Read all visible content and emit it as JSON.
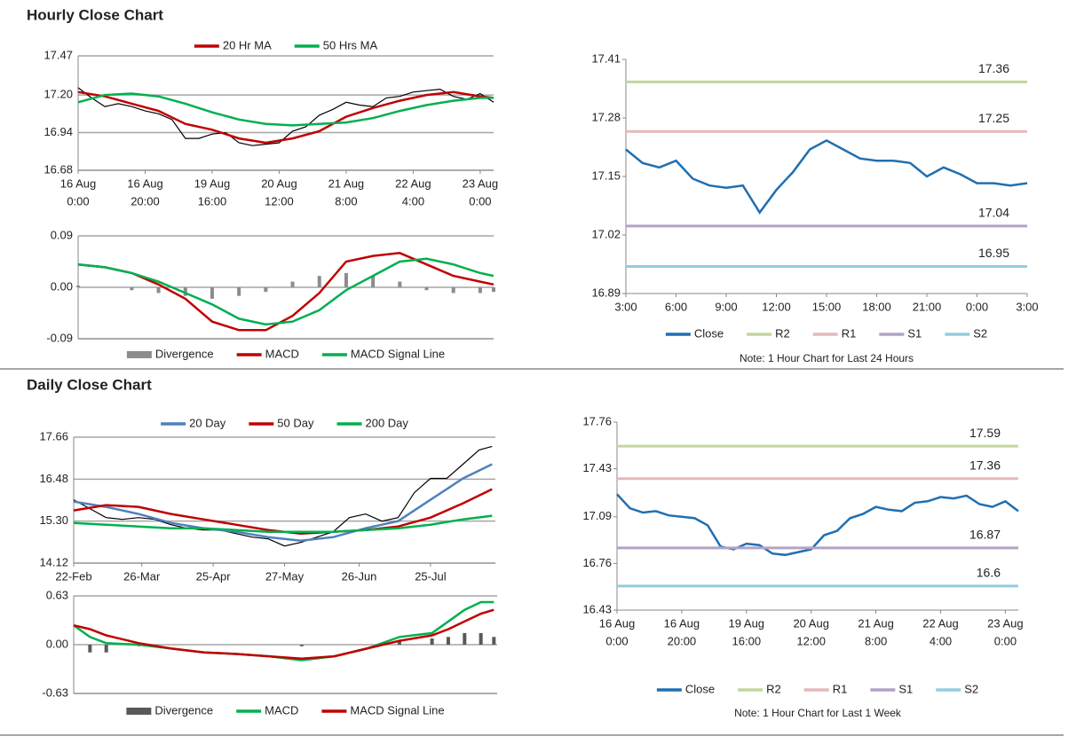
{
  "sections": [
    {
      "title": "Hourly Close Chart"
    },
    {
      "title": "Daily Close Chart"
    }
  ],
  "chart_data": [
    {
      "type": "line",
      "xlim": [
        0,
        124
      ],
      "xticks": [
        {
          "value": 0,
          "label": [
            "16 Aug",
            "0:00"
          ]
        },
        {
          "value": 20,
          "label": [
            "16 Aug",
            "20:00"
          ]
        },
        {
          "value": 40,
          "label": [
            "19 Aug",
            "16:00"
          ]
        },
        {
          "value": 60,
          "label": [
            "20 Aug",
            "12:00"
          ]
        },
        {
          "value": 80,
          "label": [
            "21 Aug",
            "8:00"
          ]
        },
        {
          "value": 100,
          "label": [
            "22 Aug",
            "4:00"
          ]
        },
        {
          "value": 120,
          "label": [
            "23 Aug",
            "0:00"
          ]
        }
      ],
      "ylim": [
        16.68,
        17.47
      ],
      "yticks": [
        {
          "value": 16.68,
          "label": "16.68"
        },
        {
          "value": 16.94,
          "label": "16.94"
        },
        {
          "value": 17.2,
          "label": "17.20"
        },
        {
          "value": 17.47,
          "label": "17.47"
        }
      ],
      "grid": true,
      "legend": "top",
      "series": [
        {
          "color": "#000000",
          "x": [
            0,
            4,
            8,
            12,
            16,
            20,
            24,
            28,
            32,
            36,
            40,
            44,
            48,
            52,
            56,
            60,
            64,
            68,
            72,
            76,
            80,
            84,
            88,
            92,
            96,
            100,
            104,
            108,
            112,
            116,
            120,
            124
          ],
          "values": [
            17.25,
            17.18,
            17.12,
            17.14,
            17.12,
            17.09,
            17.07,
            17.03,
            16.9,
            16.9,
            16.93,
            16.94,
            16.87,
            16.85,
            16.86,
            16.87,
            16.95,
            16.98,
            17.06,
            17.1,
            17.15,
            17.13,
            17.12,
            17.18,
            17.19,
            17.22,
            17.23,
            17.24,
            17.19,
            17.17,
            17.21,
            17.15
          ]
        },
        {
          "name": "20 Hr MA",
          "color": "#c00000",
          "x": [
            0,
            8,
            16,
            24,
            32,
            40,
            48,
            56,
            64,
            72,
            80,
            88,
            96,
            104,
            112,
            120,
            124
          ],
          "values": [
            17.22,
            17.19,
            17.14,
            17.09,
            17.0,
            16.96,
            16.9,
            16.87,
            16.9,
            16.95,
            17.05,
            17.11,
            17.16,
            17.2,
            17.22,
            17.19,
            17.18
          ]
        },
        {
          "name": "50 Hrs MA",
          "color": "#00b050",
          "x": [
            0,
            8,
            16,
            24,
            32,
            40,
            48,
            56,
            64,
            72,
            80,
            88,
            96,
            104,
            112,
            120,
            124
          ],
          "values": [
            17.15,
            17.2,
            17.21,
            17.19,
            17.14,
            17.08,
            17.03,
            17.0,
            16.99,
            17.0,
            17.01,
            17.04,
            17.09,
            17.13,
            17.16,
            17.18,
            17.18
          ]
        }
      ]
    },
    {
      "type": "line",
      "xlim": [
        0,
        124
      ],
      "ylim": [
        -0.09,
        0.09
      ],
      "yticks": [
        -0.09,
        {
          "value": 0,
          "label": "0.00"
        },
        0.09
      ],
      "grid": true,
      "legend": "bottom",
      "series": [
        {
          "name": "Divergence",
          "style": "bar",
          "color": "#8c8c8c",
          "x": [
            0,
            8,
            16,
            24,
            32,
            40,
            48,
            56,
            64,
            72,
            80,
            88,
            96,
            104,
            112,
            120,
            124
          ],
          "values": [
            0.003,
            0,
            -0.005,
            -0.01,
            -0.015,
            -0.02,
            -0.015,
            -0.008,
            0.01,
            0.02,
            0.025,
            0.02,
            0.01,
            -0.005,
            -0.01,
            -0.01,
            -0.008
          ]
        },
        {
          "name": "MACD",
          "color": "#c00000",
          "x": [
            0,
            8,
            16,
            24,
            32,
            40,
            48,
            56,
            64,
            72,
            80,
            88,
            96,
            104,
            112,
            120,
            124
          ],
          "values": [
            0.04,
            0.035,
            0.025,
            0.005,
            -0.02,
            -0.06,
            -0.075,
            -0.075,
            -0.05,
            -0.01,
            0.045,
            0.055,
            0.06,
            0.04,
            0.02,
            0.01,
            0.005
          ]
        },
        {
          "name": "MACD Signal Line",
          "color": "#00b050",
          "x": [
            0,
            8,
            16,
            24,
            32,
            40,
            48,
            56,
            64,
            72,
            80,
            88,
            96,
            104,
            112,
            120,
            124
          ],
          "values": [
            0.04,
            0.035,
            0.025,
            0.01,
            -0.01,
            -0.03,
            -0.055,
            -0.065,
            -0.06,
            -0.04,
            -0.005,
            0.02,
            0.045,
            0.05,
            0.04,
            0.025,
            0.02
          ]
        }
      ]
    },
    {
      "type": "line",
      "xlim": [
        0,
        24
      ],
      "xticks": [
        {
          "value": 0,
          "label": [
            "3:00"
          ]
        },
        {
          "value": 3,
          "label": [
            "6:00"
          ]
        },
        {
          "value": 6,
          "label": [
            "9:00"
          ]
        },
        {
          "value": 9,
          "label": [
            "12:00"
          ]
        },
        {
          "value": 12,
          "label": [
            "15:00"
          ]
        },
        {
          "value": 15,
          "label": [
            "18:00"
          ]
        },
        {
          "value": 18,
          "label": [
            "21:00"
          ]
        },
        {
          "value": 21,
          "label": [
            "0:00"
          ]
        },
        {
          "value": 24,
          "label": [
            "3:00"
          ]
        }
      ],
      "ylim": [
        16.89,
        17.41
      ],
      "yticks": [
        16.89,
        17.02,
        17.15,
        17.28,
        17.41
      ],
      "grid": false,
      "legend": "bottom",
      "series": [
        {
          "name": "Close",
          "color": "#1f6fb2",
          "x": [
            0,
            1,
            2,
            3,
            4,
            5,
            6,
            7,
            8,
            9,
            10,
            11,
            12,
            13,
            14,
            15,
            16,
            17,
            18,
            19,
            20,
            21,
            22,
            23,
            24
          ],
          "values": [
            17.21,
            17.18,
            17.17,
            17.185,
            17.145,
            17.13,
            17.125,
            17.13,
            17.07,
            17.12,
            17.16,
            17.21,
            17.23,
            17.21,
            17.19,
            17.185,
            17.185,
            17.18,
            17.15,
            17.17,
            17.155,
            17.135,
            17.135,
            17.13,
            17.135
          ]
        },
        {
          "name": "R2",
          "color": "#c3d69b",
          "level": 17.36
        },
        {
          "name": "R1",
          "color": "#e6b9b8",
          "level": 17.25
        },
        {
          "name": "S1",
          "color": "#b3a2c7",
          "level": 17.04
        },
        {
          "name": "S2",
          "color": "#93cddd",
          "level": 16.95
        }
      ],
      "note": "Note: 1 Hour Chart for Last 24 Hours"
    },
    {
      "type": "line",
      "xlim": [
        0,
        130
      ],
      "xticks": [
        {
          "value": 0,
          "label": [
            "22-Feb"
          ]
        },
        {
          "value": 21,
          "label": [
            "26-Mar"
          ]
        },
        {
          "value": 43,
          "label": [
            "25-Apr"
          ]
        },
        {
          "value": 65,
          "label": [
            "27-May"
          ]
        },
        {
          "value": 88,
          "label": [
            "26-Jun"
          ]
        },
        {
          "value": 110,
          "label": [
            "25-Jul"
          ]
        }
      ],
      "ylim": [
        14.12,
        17.66
      ],
      "yticks": [
        14.12,
        {
          "value": 15.3,
          "label": "15.30"
        },
        16.48,
        17.66
      ],
      "grid": true,
      "legend": "top",
      "series": [
        {
          "color": "#000000",
          "x": [
            0,
            5,
            10,
            15,
            20,
            25,
            30,
            35,
            40,
            45,
            50,
            55,
            60,
            65,
            70,
            75,
            80,
            85,
            90,
            95,
            100,
            105,
            110,
            115,
            120,
            125,
            129
          ],
          "values": [
            15.9,
            15.65,
            15.4,
            15.35,
            15.4,
            15.35,
            15.2,
            15.1,
            15.05,
            15.05,
            14.95,
            14.85,
            14.8,
            14.6,
            14.7,
            14.85,
            15.0,
            15.4,
            15.5,
            15.3,
            15.4,
            16.1,
            16.5,
            16.5,
            16.9,
            17.3,
            17.4
          ]
        },
        {
          "name": "20 Day",
          "color": "#4f81bd",
          "x": [
            0,
            10,
            20,
            30,
            40,
            50,
            60,
            70,
            80,
            90,
            100,
            110,
            120,
            129
          ],
          "values": [
            15.85,
            15.7,
            15.5,
            15.25,
            15.1,
            15.0,
            14.85,
            14.75,
            14.85,
            15.1,
            15.3,
            15.9,
            16.5,
            16.9
          ]
        },
        {
          "name": "50 Day",
          "color": "#c00000",
          "x": [
            0,
            10,
            20,
            30,
            40,
            50,
            60,
            70,
            80,
            90,
            100,
            110,
            120,
            129
          ],
          "values": [
            15.6,
            15.75,
            15.7,
            15.5,
            15.35,
            15.2,
            15.05,
            14.95,
            15.0,
            15.05,
            15.15,
            15.4,
            15.8,
            16.2
          ]
        },
        {
          "name": "200 Day",
          "color": "#00b050",
          "x": [
            0,
            10,
            20,
            30,
            40,
            50,
            60,
            70,
            80,
            90,
            100,
            110,
            120,
            129
          ],
          "values": [
            15.25,
            15.2,
            15.15,
            15.1,
            15.1,
            15.05,
            15.0,
            15.0,
            15.0,
            15.05,
            15.1,
            15.2,
            15.35,
            15.45
          ]
        }
      ]
    },
    {
      "type": "line",
      "xlim": [
        0,
        130
      ],
      "ylim": [
        -0.63,
        0.63
      ],
      "yticks": [
        -0.63,
        {
          "value": 0,
          "label": "0.00"
        },
        0.63
      ],
      "grid": true,
      "legend": "bottom",
      "series": [
        {
          "name": "Divergence",
          "style": "bar",
          "color": "#595959",
          "x": [
            0,
            5,
            10,
            20,
            30,
            40,
            50,
            60,
            70,
            80,
            90,
            100,
            110,
            115,
            120,
            125,
            129
          ],
          "values": [
            0,
            -0.1,
            -0.1,
            -0.02,
            0,
            0,
            0,
            0,
            -0.02,
            0,
            0,
            0.05,
            0.08,
            0.1,
            0.15,
            0.15,
            0.1
          ]
        },
        {
          "name": "MACD",
          "color": "#00b050",
          "x": [
            0,
            5,
            10,
            20,
            30,
            40,
            50,
            60,
            70,
            80,
            90,
            100,
            110,
            115,
            120,
            125,
            129
          ],
          "values": [
            0.25,
            0.1,
            0.02,
            0,
            -0.05,
            -0.1,
            -0.12,
            -0.15,
            -0.2,
            -0.15,
            -0.05,
            0.1,
            0.15,
            0.3,
            0.45,
            0.55,
            0.55
          ]
        },
        {
          "name": "MACD Signal Line",
          "color": "#c00000",
          "x": [
            0,
            5,
            10,
            20,
            30,
            40,
            50,
            60,
            70,
            80,
            90,
            100,
            110,
            115,
            120,
            125,
            129
          ],
          "values": [
            0.25,
            0.2,
            0.12,
            0.02,
            -0.05,
            -0.1,
            -0.12,
            -0.15,
            -0.18,
            -0.15,
            -0.05,
            0.05,
            0.12,
            0.2,
            0.3,
            0.4,
            0.45
          ]
        }
      ]
    },
    {
      "type": "line",
      "xlim": [
        0,
        124
      ],
      "xticks": [
        {
          "value": 0,
          "label": [
            "16 Aug",
            "0:00"
          ]
        },
        {
          "value": 20,
          "label": [
            "16 Aug",
            "20:00"
          ]
        },
        {
          "value": 40,
          "label": [
            "19 Aug",
            "16:00"
          ]
        },
        {
          "value": 60,
          "label": [
            "20 Aug",
            "12:00"
          ]
        },
        {
          "value": 80,
          "label": [
            "21 Aug",
            "8:00"
          ]
        },
        {
          "value": 100,
          "label": [
            "22 Aug",
            "4:00"
          ]
        },
        {
          "value": 120,
          "label": [
            "23 Aug",
            "0:00"
          ]
        }
      ],
      "ylim": [
        16.43,
        17.76
      ],
      "yticks": [
        16.43,
        16.76,
        17.09,
        17.43,
        17.76
      ],
      "grid": false,
      "legend": "bottom",
      "series": [
        {
          "name": "Close",
          "color": "#1f6fb2",
          "x": [
            0,
            4,
            8,
            12,
            16,
            20,
            24,
            28,
            32,
            36,
            40,
            44,
            48,
            52,
            56,
            60,
            64,
            68,
            72,
            76,
            80,
            84,
            88,
            92,
            96,
            100,
            104,
            108,
            112,
            116,
            120,
            124
          ],
          "values": [
            17.25,
            17.15,
            17.12,
            17.13,
            17.1,
            17.09,
            17.08,
            17.03,
            16.88,
            16.86,
            16.9,
            16.89,
            16.83,
            16.82,
            16.84,
            16.86,
            16.96,
            16.99,
            17.08,
            17.11,
            17.16,
            17.14,
            17.13,
            17.19,
            17.2,
            17.23,
            17.22,
            17.24,
            17.18,
            17.16,
            17.2,
            17.13
          ]
        },
        {
          "name": "R2",
          "color": "#c3d69b",
          "level": 17.59
        },
        {
          "name": "R1",
          "color": "#e6b9b8",
          "level": 17.36
        },
        {
          "name": "S1",
          "color": "#b3a2c7",
          "level": 16.87
        },
        {
          "name": "S2",
          "color": "#93cddd",
          "level": 16.6
        }
      ],
      "note": "Note: 1 Hour Chart for Last 1 Week"
    }
  ]
}
